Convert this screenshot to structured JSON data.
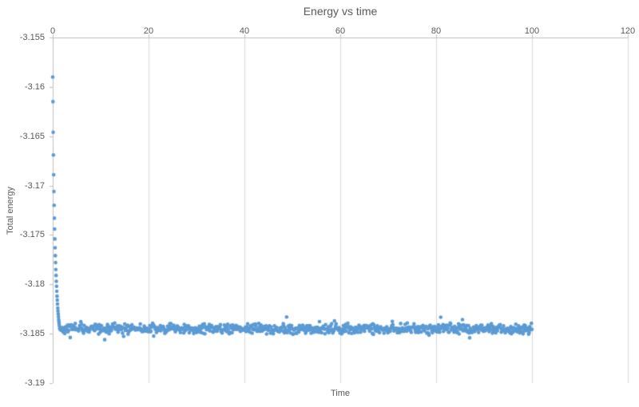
{
  "chart_data": {
    "type": "scatter",
    "title": "Energy vs time",
    "xlabel": "Time",
    "ylabel": "Total energy",
    "xlim": [
      0,
      120
    ],
    "ylim": [
      -3.19,
      -3.155
    ],
    "grid": "vertical-major-only",
    "legend": "none",
    "x_ticks": [
      {
        "value": 0,
        "label": "0"
      },
      {
        "value": 20,
        "label": "20"
      },
      {
        "value": 40,
        "label": "40"
      },
      {
        "value": 60,
        "label": "60"
      },
      {
        "value": 80,
        "label": "80"
      },
      {
        "value": 100,
        "label": "100"
      },
      {
        "value": 120,
        "label": "120"
      }
    ],
    "y_ticks": [
      {
        "value": -3.155,
        "label": "-3.155"
      },
      {
        "value": -3.16,
        "label": "-3.16"
      },
      {
        "value": -3.165,
        "label": "-3.165"
      },
      {
        "value": -3.17,
        "label": "-3.17"
      },
      {
        "value": -3.175,
        "label": "-3.175"
      },
      {
        "value": -3.18,
        "label": "-3.18"
      },
      {
        "value": -3.185,
        "label": "-3.185"
      },
      {
        "value": -3.19,
        "label": "-3.19"
      }
    ],
    "colors": {
      "marker": "#5B9BD5",
      "grid": "#D9D9D9",
      "axis": "#BFBFBF",
      "text": "#595959",
      "background": "#FFFFFF"
    },
    "marker_radius_px": 2.3,
    "series": [
      {
        "name": "Total energy",
        "description": "Rapid initial equilibration near t=0 from -3.159 down to ~-3.184, then noisy plateau around -3.1845 until t=100",
        "transient_points": [
          [
            0.0,
            -3.159
          ],
          [
            0.05,
            -3.1615
          ],
          [
            0.1,
            -3.1646
          ],
          [
            0.15,
            -3.1669
          ],
          [
            0.2,
            -3.1689
          ],
          [
            0.25,
            -3.1706
          ],
          [
            0.3,
            -3.172
          ],
          [
            0.35,
            -3.1733
          ],
          [
            0.4,
            -3.1744
          ],
          [
            0.45,
            -3.1754
          ],
          [
            0.5,
            -3.1763
          ],
          [
            0.55,
            -3.1771
          ],
          [
            0.6,
            -3.1778
          ],
          [
            0.65,
            -3.1785
          ],
          [
            0.7,
            -3.1791
          ],
          [
            0.75,
            -3.1797
          ],
          [
            0.8,
            -3.1802
          ],
          [
            0.85,
            -3.1807
          ],
          [
            0.9,
            -3.1812
          ],
          [
            0.95,
            -3.1816
          ],
          [
            1.0,
            -3.182
          ],
          [
            1.05,
            -3.1824
          ],
          [
            1.1,
            -3.1827
          ],
          [
            1.15,
            -3.183
          ],
          [
            1.2,
            -3.1833
          ],
          [
            1.25,
            -3.1836
          ],
          [
            1.3,
            -3.1838
          ],
          [
            1.35,
            -3.184
          ],
          [
            1.4,
            -3.1842
          ]
        ],
        "steady_state": {
          "t_start": 1.45,
          "t_end": 100,
          "n_points": 850,
          "baseline": -3.1845,
          "noise_amplitude": 0.0006,
          "outlier_probability": 0.04,
          "outlier_extra": 0.0009,
          "seed": 42
        }
      }
    ]
  }
}
